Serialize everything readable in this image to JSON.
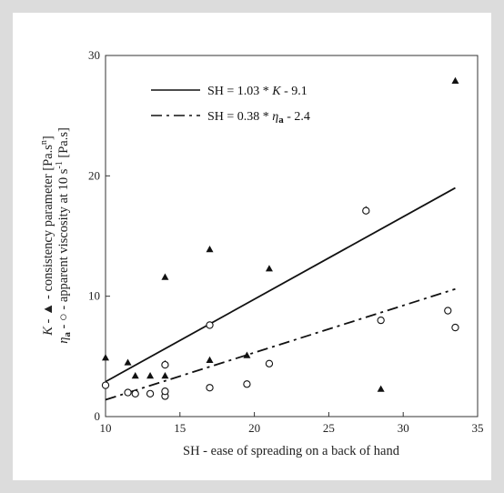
{
  "chart_data": {
    "type": "scatter",
    "xlabel": "SH - ease of spreading on a back of hand",
    "ylabel_line1": {
      "symbol": "K",
      "text": "  - ▲ - consistency parameter [Pa.s",
      "sup": "n",
      "end": "]"
    },
    "ylabel_line2": {
      "symbol": "η",
      "sub": "a",
      "text": " - ○ - apparent viscosity at 10 s",
      "sup": "-1",
      "end": " [Pa.s]"
    },
    "xlim": [
      10,
      35
    ],
    "ylim": [
      0,
      30
    ],
    "xticks": [
      "10",
      "15",
      "20",
      "25",
      "30",
      "35"
    ],
    "yticks": [
      "0",
      "10",
      "20",
      "30"
    ],
    "legend_position": "top-left",
    "series": [
      {
        "marker": "filled-triangle",
        "points": [
          [
            10,
            4.9
          ],
          [
            11.5,
            4.5
          ],
          [
            12,
            3.4
          ],
          [
            13,
            3.4
          ],
          [
            14,
            3.4
          ],
          [
            14,
            4.4
          ],
          [
            14,
            11.6
          ],
          [
            17,
            4.7
          ],
          [
            17,
            13.9
          ],
          [
            19.5,
            5.1
          ],
          [
            21,
            12.3
          ],
          [
            27.5,
            17.2
          ],
          [
            28.5,
            2.3
          ],
          [
            33.5,
            27.9
          ]
        ]
      },
      {
        "marker": "open-circle",
        "points": [
          [
            10,
            2.6
          ],
          [
            11.5,
            2.0
          ],
          [
            12,
            1.9
          ],
          [
            13,
            1.9
          ],
          [
            14,
            1.7
          ],
          [
            14,
            2.1
          ],
          [
            14,
            4.3
          ],
          [
            17,
            2.4
          ],
          [
            17,
            7.6
          ],
          [
            19.5,
            2.7
          ],
          [
            21,
            4.4
          ],
          [
            27.5,
            17.1
          ],
          [
            28.5,
            8.0
          ],
          [
            33,
            8.8
          ],
          [
            33.5,
            7.4
          ]
        ]
      }
    ],
    "fits": [
      {
        "label": "SH = 1.03 * K - 9.1",
        "label_parts": {
          "pre": "SH = 1.03 * ",
          "symbol": "K",
          "post": " - 9.1"
        },
        "style": "solid",
        "x_range": [
          10,
          33.5
        ],
        "y_range": [
          2.9,
          19.0
        ]
      },
      {
        "label": "SH = 0.38 * ηa - 2.4",
        "label_parts": {
          "pre": "SH = 0.38 * ",
          "symbol": "η",
          "sub": "a",
          "post": " - 2.4"
        },
        "style": "dash-dot",
        "x_range": [
          10,
          33.5
        ],
        "y_range": [
          1.4,
          10.6
        ]
      }
    ]
  }
}
